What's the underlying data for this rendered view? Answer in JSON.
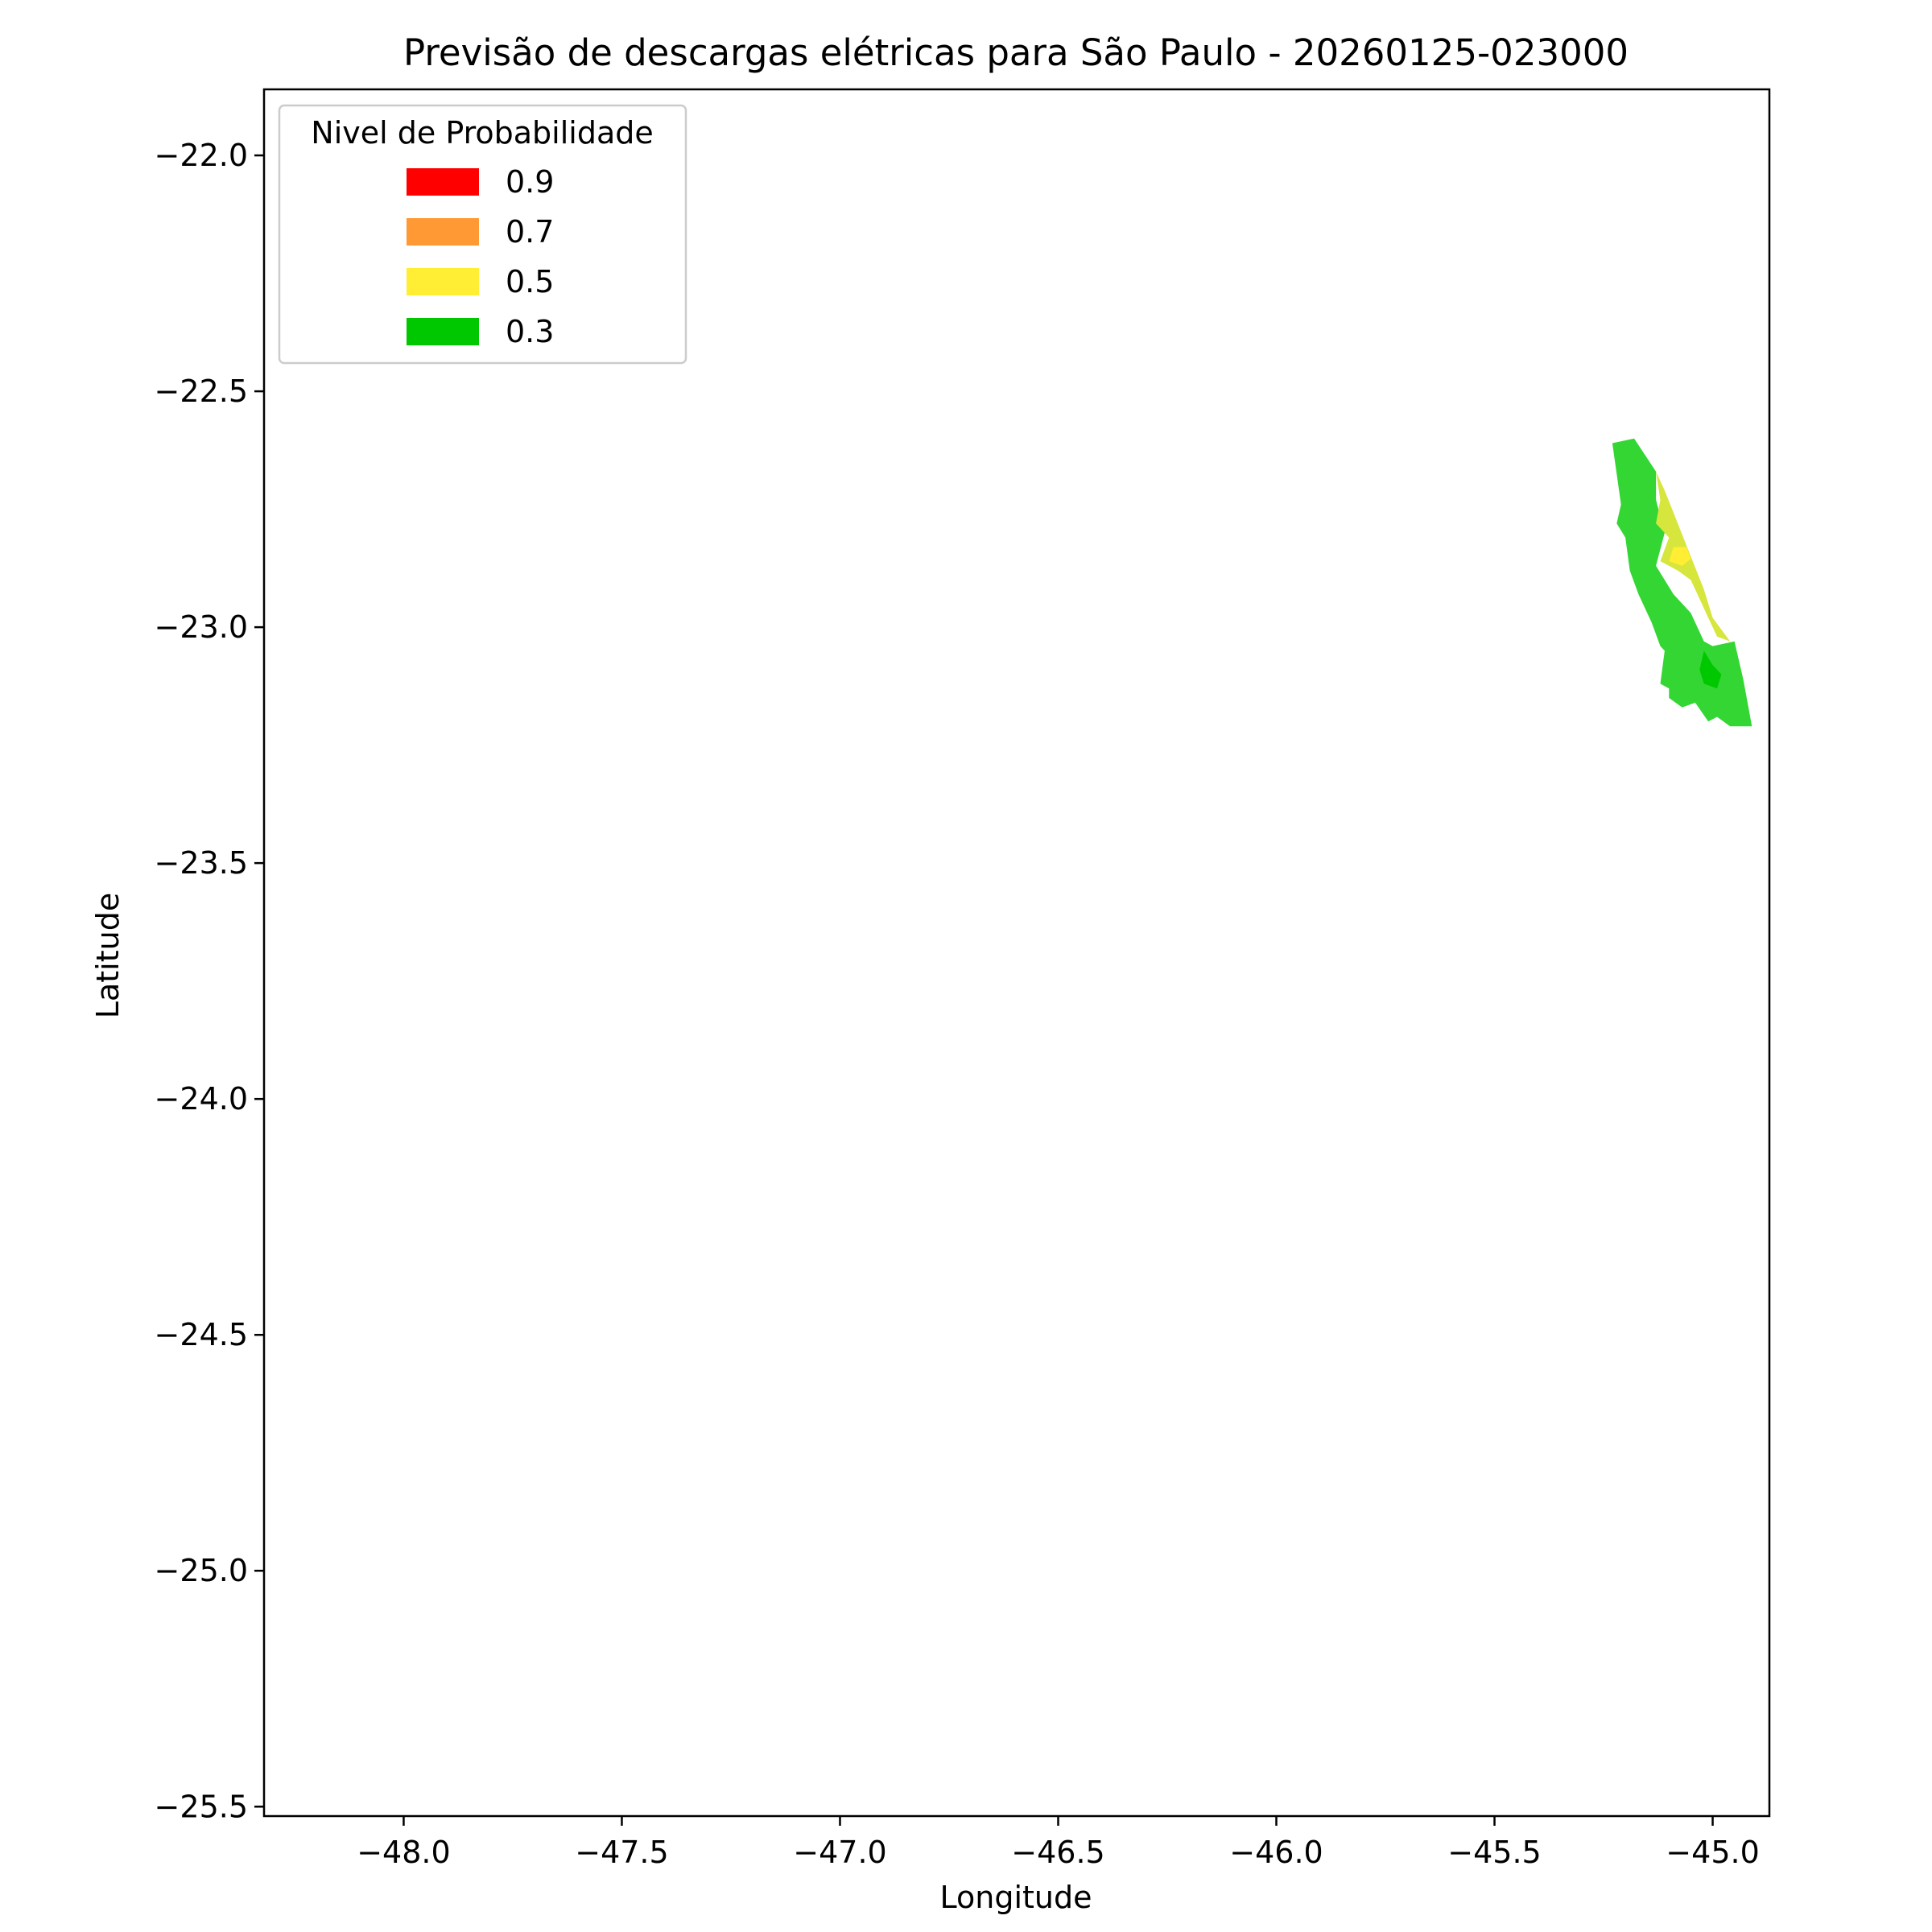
{
  "chart_data": {
    "type": "contour",
    "title": "Previsão de descargas elétricas para São Paulo - 20260125-023000",
    "xlabel": "Longitude",
    "ylabel": "Latitude",
    "xlim": [
      -48.32,
      -44.87
    ],
    "ylim": [
      -25.52,
      -21.86
    ],
    "xticks": [
      -48.0,
      -47.5,
      -47.0,
      -46.5,
      -46.0,
      -45.5,
      -45.0
    ],
    "xtick_labels": [
      "−48.0",
      "−47.5",
      "−47.0",
      "−46.5",
      "−46.0",
      "−45.5",
      "−45.0"
    ],
    "yticks": [
      -22.0,
      -22.5,
      -23.0,
      -23.5,
      -24.0,
      -24.5,
      -25.0,
      -25.5
    ],
    "ytick_labels": [
      "−22.0",
      "−22.5",
      "−23.0",
      "−23.5",
      "−24.0",
      "−24.5",
      "−25.0",
      "−25.5"
    ],
    "grid": false,
    "legend": {
      "title": "Nivel de Probabilidade",
      "position": "upper left",
      "entries": [
        {
          "label": "0.9",
          "color": "#ff0000"
        },
        {
          "label": "0.7",
          "color": "#ff9933"
        },
        {
          "label": "0.5",
          "color": "#ffee33"
        },
        {
          "label": "0.3",
          "color": "#00c800"
        }
      ]
    },
    "regions": [
      {
        "level": "0.3",
        "color": "#33d633",
        "points": [
          [
            -45.23,
            -22.61
          ],
          [
            -45.18,
            -22.6
          ],
          [
            -45.13,
            -22.67
          ],
          [
            -45.13,
            -22.73
          ],
          [
            -45.11,
            -22.8
          ],
          [
            -45.13,
            -22.87
          ],
          [
            -45.09,
            -22.93
          ],
          [
            -45.05,
            -22.97
          ],
          [
            -45.02,
            -23.03
          ],
          [
            -45.0,
            -23.04
          ],
          [
            -44.95,
            -23.03
          ],
          [
            -44.93,
            -23.11
          ],
          [
            -44.91,
            -23.21
          ],
          [
            -44.96,
            -23.21
          ],
          [
            -44.99,
            -23.19
          ],
          [
            -45.01,
            -23.2
          ],
          [
            -45.04,
            -23.16
          ],
          [
            -45.07,
            -23.17
          ],
          [
            -45.1,
            -23.15
          ],
          [
            -45.1,
            -23.13
          ],
          [
            -45.12,
            -23.12
          ],
          [
            -45.11,
            -23.05
          ],
          [
            -45.12,
            -23.04
          ],
          [
            -45.14,
            -22.99
          ],
          [
            -45.17,
            -22.93
          ],
          [
            -45.19,
            -22.88
          ],
          [
            -45.2,
            -22.81
          ],
          [
            -45.22,
            -22.78
          ],
          [
            -45.21,
            -22.74
          ],
          [
            -45.23,
            -22.61
          ]
        ]
      },
      {
        "level": "0.5",
        "color": "#d6e63d",
        "points": [
          [
            -45.13,
            -22.67
          ],
          [
            -45.11,
            -22.71
          ],
          [
            -45.08,
            -22.78
          ],
          [
            -45.05,
            -22.85
          ],
          [
            -45.02,
            -22.92
          ],
          [
            -45.0,
            -22.98
          ],
          [
            -44.96,
            -23.03
          ],
          [
            -44.99,
            -23.02
          ],
          [
            -45.01,
            -22.98
          ],
          [
            -45.03,
            -22.94
          ],
          [
            -45.05,
            -22.9
          ],
          [
            -45.08,
            -22.88
          ],
          [
            -45.12,
            -22.86
          ],
          [
            -45.1,
            -22.81
          ],
          [
            -45.13,
            -22.78
          ],
          [
            -45.12,
            -22.73
          ],
          [
            -45.13,
            -22.67
          ]
        ]
      },
      {
        "level": "0.5",
        "color": "#ffee33",
        "points": [
          [
            -45.09,
            -22.83
          ],
          [
            -45.06,
            -22.83
          ],
          [
            -45.05,
            -22.855
          ],
          [
            -45.07,
            -22.87
          ],
          [
            -45.1,
            -22.86
          ],
          [
            -45.09,
            -22.83
          ]
        ]
      },
      {
        "level": "0.3",
        "color": "#00c800",
        "points": [
          [
            -45.02,
            -23.05
          ],
          [
            -45.0,
            -23.08
          ],
          [
            -44.98,
            -23.1
          ],
          [
            -44.99,
            -23.13
          ],
          [
            -45.02,
            -23.12
          ],
          [
            -45.03,
            -23.09
          ],
          [
            -45.02,
            -23.05
          ]
        ]
      }
    ]
  }
}
